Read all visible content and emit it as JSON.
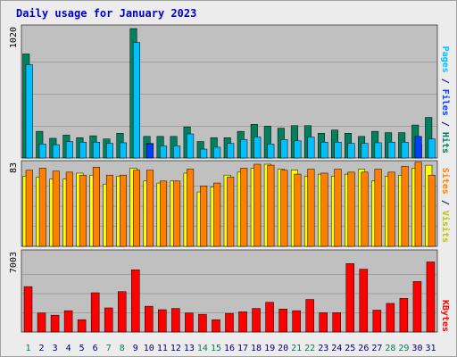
{
  "title": "Daily usage for January 2023",
  "colors": {
    "background": "#ececec",
    "panel": "#c0c0c0",
    "title": "#0000cc",
    "hits": "#00805c",
    "files": "#00c0ff",
    "pages": "#00c0ff",
    "pages_bar": "#0040ff",
    "visits": "#ffff00",
    "sites": "#ff8000",
    "kbytes": "#ff0000",
    "weekend_label": "#00805c",
    "weekday_label": "#000080",
    "grid": "#808080"
  },
  "legend_top": [
    {
      "text": "Pages",
      "color": "#00c0ff"
    },
    {
      "text": " / ",
      "color": "#000080"
    },
    {
      "text": "Files",
      "color": "#0040ff"
    },
    {
      "text": " / ",
      "color": "#000080"
    },
    {
      "text": "Hits",
      "color": "#00805c"
    }
  ],
  "legend_mid": [
    {
      "text": "Sites",
      "color": "#ff8000"
    },
    {
      "text": " / ",
      "color": "#000080"
    },
    {
      "text": "Visits",
      "color": "#c0c000"
    }
  ],
  "legend_bot": [
    {
      "text": "KBytes",
      "color": "#ff0000"
    }
  ],
  "chart_data": {
    "type": "bar",
    "title": "Daily usage for January 2023",
    "categories": [
      "1",
      "2",
      "3",
      "4",
      "5",
      "6",
      "7",
      "8",
      "9",
      "10",
      "11",
      "12",
      "13",
      "14",
      "15",
      "16",
      "17",
      "18",
      "19",
      "20",
      "21",
      "22",
      "23",
      "24",
      "25",
      "26",
      "27",
      "28",
      "29",
      "30",
      "31"
    ],
    "weekend_days": [
      "1",
      "7",
      "8",
      "14",
      "15",
      "21",
      "22",
      "28",
      "29"
    ],
    "panels": [
      {
        "name": "hits-files-pages",
        "ymax_label": "1020",
        "ymax": 1020,
        "series": [
          {
            "name": "Hits",
            "values": [
              820,
              210,
              155,
              180,
              160,
              175,
              150,
              195,
              1020,
              170,
              170,
              170,
              245,
              130,
              160,
              160,
              210,
              265,
              250,
              235,
              255,
              255,
              195,
              220,
              195,
              170,
              210,
              200,
              200,
              260,
              320
            ]
          },
          {
            "name": "Files",
            "values": [
              735,
              110,
              105,
              130,
              125,
              125,
              115,
              120,
              910,
              115,
              95,
              95,
              190,
              70,
              85,
              115,
              145,
              165,
              110,
              145,
              135,
              165,
              125,
              125,
              115,
              115,
              120,
              125,
              125,
              110,
              150
            ]
          },
          {
            "name": "Pages",
            "values": [
              0,
              0,
              0,
              0,
              0,
              0,
              0,
              0,
              0,
              110,
              0,
              0,
              0,
              0,
              0,
              0,
              0,
              0,
              0,
              0,
              0,
              0,
              0,
              0,
              0,
              0,
              0,
              0,
              0,
              170,
              0
            ]
          }
        ]
      },
      {
        "name": "visits-sites",
        "ymax_label": "83",
        "ymax": 83,
        "series": [
          {
            "name": "Visits",
            "values": [
              71,
              70,
              68,
              68,
              74,
              72,
              63,
              71,
              79,
              66,
              64,
              66,
              74,
              55,
              60,
              72,
              75,
              79,
              83,
              78,
              77,
              71,
              73,
              71,
              73,
              78,
              66,
              71,
              72,
              79,
              82
            ]
          },
          {
            "name": "Sites",
            "values": [
              77,
              79,
              76,
              75,
              72,
              80,
              72,
              72,
              77,
              77,
              66,
              66,
              78,
              61,
              64,
              70,
              79,
              83,
              82,
              77,
              73,
              78,
              74,
              78,
              75,
              75,
              78,
              75,
              81,
              85,
              72
            ]
          }
        ]
      },
      {
        "name": "kbytes",
        "ymax_label": "7003",
        "ymax": 7003,
        "series": [
          {
            "name": "KBytes",
            "values": [
              4050,
              1700,
              1500,
              1900,
              1100,
              3500,
              2150,
              3600,
              5550,
              2300,
              1990,
              2100,
              1700,
              1580,
              1100,
              1660,
              1800,
              2100,
              2650,
              2050,
              1900,
              2900,
              1720,
              1720,
              6100,
              5600,
              1950,
              2550,
              3000,
              4500,
              6250
            ]
          }
        ]
      }
    ]
  }
}
